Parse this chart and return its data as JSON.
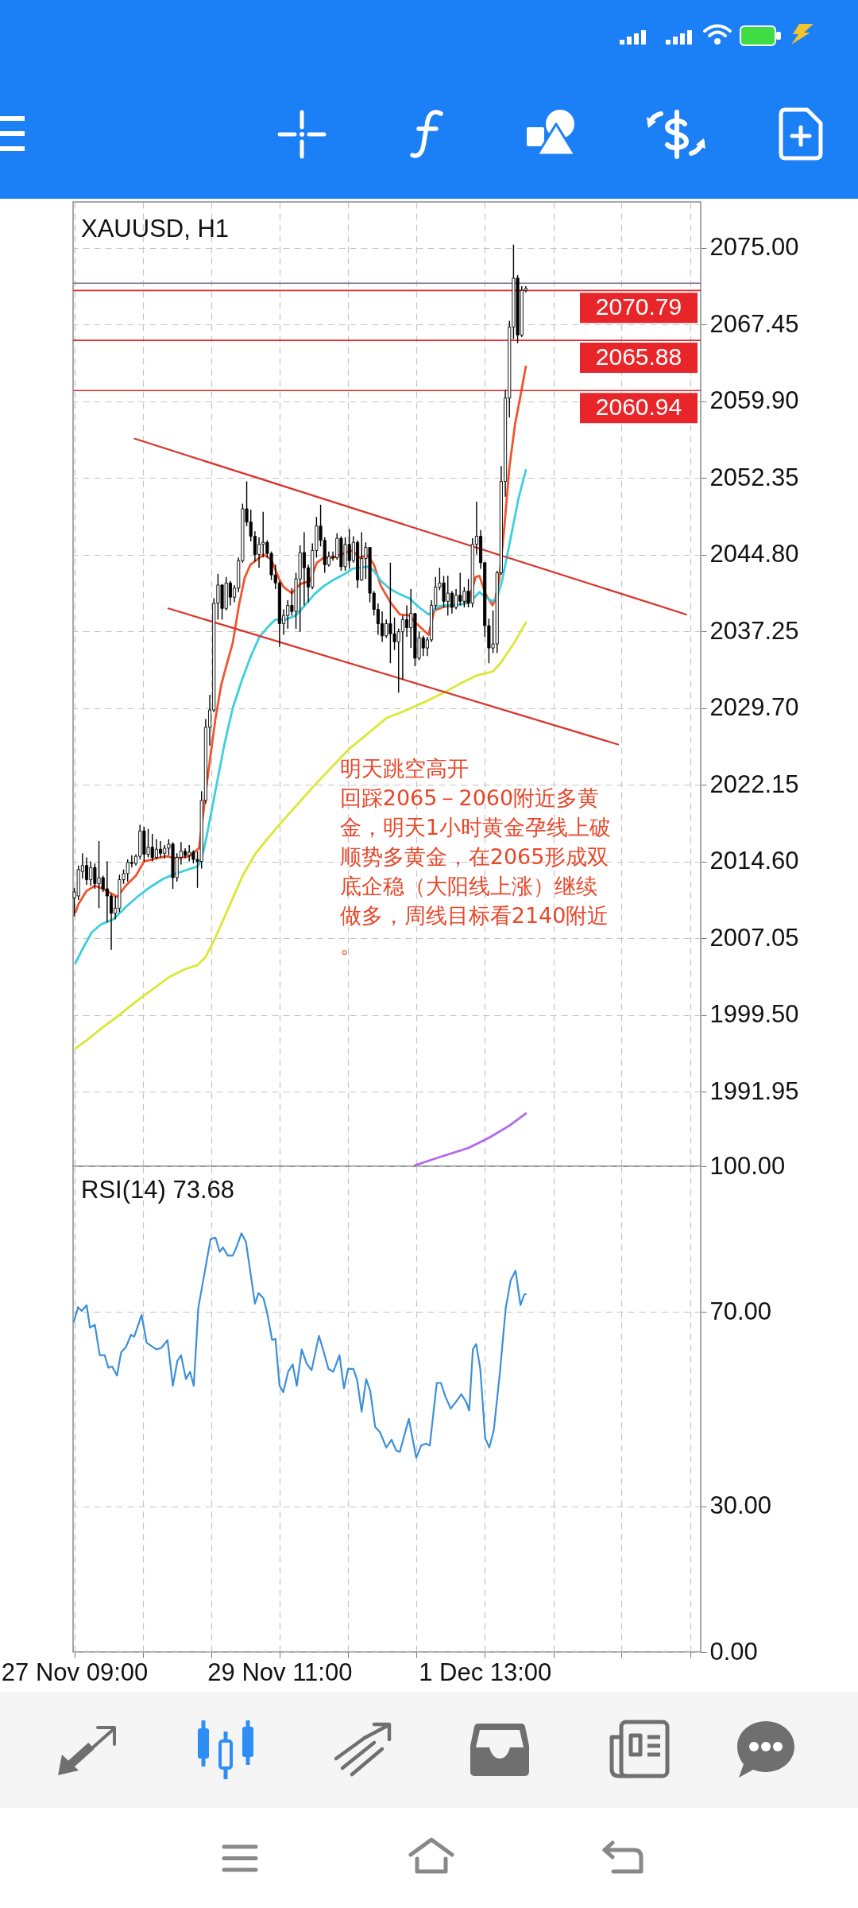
{
  "chart_data": [
    {
      "type": "candlestick",
      "title": "XAUUSD, H1",
      "x": [
        "--11-27T09:00",
        "--11-27T10:00",
        "--11-27T11:00",
        "--11-27T12:00",
        "--11-27T13:00",
        "--11-27T14:00",
        "--11-27T15:00",
        "--11-27T16:00",
        "--11-27T17:00",
        "--11-27T18:00",
        "--11-27T19:00",
        "--11-27T20:00",
        "--11-27T21:00",
        "--11-27T22:00",
        "--11-27T23:00",
        "--11-28T00:00",
        "--11-28T01:00",
        "--11-28T02:00",
        "--11-28T03:00",
        "--11-28T04:00",
        "--11-28T05:00",
        "--11-28T06:00",
        "--11-28T07:00",
        "--11-28T08:00",
        "--11-28T09:00",
        "--11-28T10:00",
        "--11-28T11:00",
        "--11-28T12:00",
        "--11-28T13:00",
        "--11-28T14:00",
        "--11-28T15:00",
        "--11-28T16:00",
        "--11-28T17:00",
        "--11-28T18:00",
        "--11-28T19:00",
        "--11-28T20:00",
        "--11-28T21:00",
        "--11-28T22:00",
        "--11-28T23:00",
        "--11-29T00:00",
        "--11-29T01:00",
        "--11-29T02:00",
        "--11-29T03:00",
        "--11-29T04:00",
        "--11-29T05:00",
        "--11-29T06:00",
        "--11-29T07:00",
        "--11-29T08:00",
        "--11-29T09:00",
        "--11-29T10:00",
        "--11-29T11:00",
        "--11-29T12:00",
        "--11-29T13:00",
        "--11-29T14:00",
        "--11-29T15:00",
        "--11-29T16:00",
        "--11-29T17:00",
        "--11-29T18:00",
        "--11-29T19:00",
        "--11-29T20:00",
        "--11-29T21:00",
        "--11-29T22:00",
        "--11-29T23:00",
        "--11-30T00:00",
        "--11-30T01:00",
        "--11-30T02:00",
        "--11-30T03:00",
        "--11-30T04:00",
        "--11-30T05:00",
        "--11-30T06:00",
        "--11-30T07:00",
        "--11-30T08:00",
        "--11-30T09:00",
        "--11-30T10:00",
        "--11-30T11:00",
        "--11-30T12:00",
        "--11-30T13:00",
        "--11-30T14:00",
        "--11-30T15:00",
        "--11-30T16:00",
        "--11-30T17:00",
        "--11-30T18:00",
        "--11-30T19:00",
        "--11-30T20:00",
        "--11-30T21:00",
        "--11-30T22:00",
        "--11-30T23:00",
        "--12-01T00:00",
        "--12-01T01:00",
        "--12-01T02:00",
        "--12-01T03:00",
        "--12-01T04:00",
        "--12-01T05:00",
        "--12-01T06:00",
        "--12-01T07:00",
        "--12-01T08:00",
        "--12-01T09:00",
        "--12-01T10:00",
        "--12-01T11:00",
        "--12-01T12:00",
        "--12-01T13:00",
        "--12-01T14:00",
        "--12-01T15:00",
        "--12-01T16:00",
        "--12-01T17:00",
        "--12-01T18:00",
        "--12-01T19:00",
        "--12-01T20:00",
        "--12-01T21:00",
        "--12-01T22:00",
        "--12-01T23:00"
      ],
      "ohlc": [
        [
          2011.0,
          2012.0,
          2009.2,
          2011.6
        ],
        [
          2011.2,
          2014.2,
          2010.8,
          2013.8
        ],
        [
          2013.6,
          2015.4,
          2012.9,
          2014.2
        ],
        [
          2014.2,
          2015.0,
          2012.3,
          2012.8
        ],
        [
          2012.8,
          2014.6,
          2012.2,
          2014.0
        ],
        [
          2014.0,
          2014.4,
          2011.9,
          2012.4
        ],
        [
          2012.4,
          2016.6,
          2010.0,
          2013.0
        ],
        [
          2013.0,
          2013.2,
          2011.6,
          2011.9
        ],
        [
          2011.9,
          2014.6,
          2008.6,
          2011.2
        ],
        [
          2011.2,
          2011.4,
          2005.9,
          2009.5
        ],
        [
          2009.5,
          2011.2,
          2008.9,
          2010.0
        ],
        [
          2010.0,
          2013.3,
          2009.6,
          2012.8
        ],
        [
          2012.8,
          2013.8,
          2012.4,
          2013.4
        ],
        [
          2013.4,
          2014.8,
          2012.6,
          2014.5
        ],
        [
          2014.5,
          2015.2,
          2014.0,
          2014.4
        ],
        [
          2014.4,
          2015.3,
          2014.2,
          2015.1
        ],
        [
          2015.1,
          2018.2,
          2014.8,
          2017.6
        ],
        [
          2017.6,
          2018.0,
          2014.6,
          2015.3
        ],
        [
          2015.3,
          2017.8,
          2015.0,
          2016.0
        ],
        [
          2016.0,
          2017.3,
          2014.6,
          2015.0
        ],
        [
          2015.0,
          2016.8,
          2014.8,
          2015.8
        ],
        [
          2015.8,
          2016.6,
          2015.0,
          2015.4
        ],
        [
          2015.4,
          2016.2,
          2014.9,
          2015.9
        ],
        [
          2015.9,
          2016.8,
          2015.2,
          2016.3
        ],
        [
          2016.3,
          2016.5,
          2011.9,
          2013.0
        ],
        [
          2013.0,
          2015.4,
          2012.6,
          2015.0
        ],
        [
          2015.0,
          2016.5,
          2014.3,
          2015.6
        ],
        [
          2015.6,
          2015.9,
          2014.9,
          2015.2
        ],
        [
          2015.2,
          2016.2,
          2014.6,
          2015.5
        ],
        [
          2015.5,
          2015.7,
          2014.4,
          2014.8
        ],
        [
          2014.8,
          2015.6,
          2012.0,
          2014.6
        ],
        [
          2014.6,
          2021.5,
          2013.9,
          2020.6
        ],
        [
          2020.6,
          2028.6,
          2020.3,
          2027.8
        ],
        [
          2027.8,
          2031.0,
          2026.0,
          2029.5
        ],
        [
          2029.5,
          2040.5,
          2029.3,
          2040.0
        ],
        [
          2040.0,
          2042.9,
          2038.4,
          2041.8
        ],
        [
          2041.8,
          2041.9,
          2038.4,
          2039.5
        ],
        [
          2039.5,
          2042.6,
          2039.3,
          2042.0
        ],
        [
          2042.0,
          2042.2,
          2039.8,
          2040.6
        ],
        [
          2040.6,
          2041.8,
          2040.1,
          2041.5
        ],
        [
          2041.5,
          2044.5,
          2041.1,
          2044.2
        ],
        [
          2044.2,
          2049.8,
          2044.0,
          2049.3
        ],
        [
          2049.3,
          2052.0,
          2047.6,
          2048.0
        ],
        [
          2048.0,
          2049.2,
          2046.1,
          2046.6
        ],
        [
          2046.6,
          2047.1,
          2044.1,
          2044.8
        ],
        [
          2044.8,
          2046.5,
          2043.5,
          2045.8
        ],
        [
          2045.8,
          2049.0,
          2044.5,
          2046.0
        ],
        [
          2046.0,
          2046.2,
          2044.5,
          2044.9
        ],
        [
          2044.9,
          2045.1,
          2042.3,
          2042.8
        ],
        [
          2042.8,
          2043.8,
          2041.4,
          2042.0
        ],
        [
          2042.0,
          2042.2,
          2035.7,
          2038.0
        ],
        [
          2038.0,
          2039.4,
          2036.9,
          2038.8
        ],
        [
          2038.8,
          2040.3,
          2037.5,
          2039.8
        ],
        [
          2039.8,
          2041.5,
          2038.8,
          2039.2
        ],
        [
          2039.2,
          2043.0,
          2037.5,
          2042.4
        ],
        [
          2042.4,
          2045.7,
          2037.2,
          2045.0
        ],
        [
          2045.0,
          2047.0,
          2039.8,
          2043.5
        ],
        [
          2043.5,
          2043.8,
          2040.1,
          2041.6
        ],
        [
          2041.6,
          2045.9,
          2041.4,
          2045.2
        ],
        [
          2045.2,
          2048.5,
          2044.5,
          2047.6
        ],
        [
          2047.6,
          2049.7,
          2045.6,
          2046.2
        ],
        [
          2046.2,
          2046.5,
          2043.0,
          2043.8
        ],
        [
          2043.8,
          2045.1,
          2043.6,
          2044.6
        ],
        [
          2044.6,
          2045.1,
          2044.2,
          2044.5
        ],
        [
          2044.5,
          2046.9,
          2044.3,
          2046.4
        ],
        [
          2046.4,
          2046.6,
          2043.2,
          2043.6
        ],
        [
          2043.6,
          2046.5,
          2043.2,
          2045.8
        ],
        [
          2045.8,
          2047.3,
          2043.4,
          2044.2
        ],
        [
          2044.2,
          2046.6,
          2044.0,
          2046.0
        ],
        [
          2046.0,
          2046.2,
          2041.5,
          2042.3
        ],
        [
          2042.3,
          2047.0,
          2042.2,
          2044.4
        ],
        [
          2044.4,
          2046.0,
          2042.4,
          2045.5
        ],
        [
          2045.5,
          2045.5,
          2040.1,
          2041.0
        ],
        [
          2041.0,
          2041.2,
          2038.8,
          2039.4
        ],
        [
          2039.4,
          2040.0,
          2036.9,
          2038.0
        ],
        [
          2038.0,
          2039.2,
          2036.2,
          2036.8
        ],
        [
          2036.8,
          2038.4,
          2036.6,
          2038.0
        ],
        [
          2038.0,
          2044.0,
          2034.1,
          2037.0
        ],
        [
          2037.0,
          2038.6,
          2035.4,
          2036.2
        ],
        [
          2036.2,
          2037.5,
          2031.2,
          2037.2
        ],
        [
          2037.2,
          2038.8,
          2032.5,
          2038.4
        ],
        [
          2038.4,
          2039.8,
          2036.7,
          2037.6
        ],
        [
          2037.6,
          2041.4,
          2035.6,
          2039.0
        ],
        [
          2039.0,
          2039.0,
          2033.8,
          2034.6
        ],
        [
          2034.6,
          2037.2,
          2034.4,
          2036.6
        ],
        [
          2036.6,
          2036.8,
          2034.8,
          2035.6
        ],
        [
          2035.6,
          2036.7,
          2034.8,
          2036.4
        ],
        [
          2036.4,
          2040.3,
          2036.2,
          2039.8
        ],
        [
          2039.8,
          2042.6,
          2039.4,
          2041.6
        ],
        [
          2041.6,
          2043.5,
          2041.3,
          2042.0
        ],
        [
          2042.0,
          2042.7,
          2039.6,
          2040.2
        ],
        [
          2040.2,
          2042.7,
          2038.8,
          2041.0
        ],
        [
          2041.0,
          2041.2,
          2039.0,
          2039.6
        ],
        [
          2039.6,
          2041.4,
          2039.4,
          2040.8
        ],
        [
          2040.8,
          2043.0,
          2039.8,
          2040.2
        ],
        [
          2040.2,
          2041.6,
          2039.6,
          2041.2
        ],
        [
          2041.2,
          2042.4,
          2039.6,
          2040.0
        ],
        [
          2040.0,
          2046.4,
          2039.6,
          2045.8
        ],
        [
          2045.8,
          2050.0,
          2044.8,
          2046.6
        ],
        [
          2046.6,
          2047.2,
          2043.4,
          2044.0
        ],
        [
          2044.0,
          2044.0,
          2036.7,
          2037.8
        ],
        [
          2037.8,
          2038.5,
          2034.1,
          2035.6
        ],
        [
          2035.6,
          2039.3,
          2035.1,
          2036.0
        ],
        [
          2036.0,
          2043.2,
          2035.1,
          2043.0
        ],
        [
          2043.0,
          2053.5,
          2042.8,
          2052.0
        ],
        [
          2052.0,
          2061.0,
          2050.5,
          2060.2
        ],
        [
          2060.2,
          2067.8,
          2058.3,
          2067.2
        ],
        [
          2067.2,
          2075.3,
          2066.0,
          2072.0
        ],
        [
          2072.0,
          2072.3,
          2065.6,
          2066.4
        ],
        [
          2066.4,
          2071.2,
          2066.2,
          2070.8
        ],
        [
          2070.8,
          2071.2,
          2070.6,
          2071.0
        ]
      ],
      "series": [
        {
          "type": "line",
          "color": "#f2542d",
          "x": [
            "--11-27T09:18",
            "--11-27T10:00",
            "--11-27T12:00",
            "--11-27T14:00",
            "--11-27T16:00",
            "--11-27T19:30",
            "--11-27T21:30",
            "--11-28T00:00",
            "--11-28T02:00",
            "--11-28T05:00",
            "--11-28T07:30",
            "--11-28T10:00",
            "--11-28T13:00",
            "--11-28T15:24",
            "--11-28T16:30",
            "--11-28T17:12",
            "--11-28T18:18",
            "--11-28T19:24",
            "--11-28T20:48",
            "--11-28T22:12",
            "--11-28T23:36",
            "--11-29T01:06",
            "--11-29T02:30",
            "--11-29T03:54",
            "--11-29T07:06",
            "--11-29T09:00",
            "--11-29T10:00",
            "--11-29T11:00",
            "--11-29T12:00",
            "--11-29T13:00",
            "--11-29T14:00",
            "--11-29T16:00",
            "--11-29T18:24",
            "--11-29T20:06",
            "--11-29T21:48",
            "--11-30T00:06",
            "--11-30T02:30",
            "--11-30T04:48",
            "--11-30T06:30",
            "--11-30T08:30",
            "--11-30T10:00",
            "--11-30T11:42",
            "--11-30T14:00",
            "--11-30T16:18",
            "--11-30T18:36",
            "--11-30T20:24",
            "--11-30T23:18",
            "--12-01T00:42",
            "--12-01T02:42",
            "--12-01T05:06",
            "--12-01T07:24",
            "--12-01T09:06",
            "--12-01T10:48",
            "--12-01T11:42",
            "--12-01T13:12",
            "--12-01T14:54",
            "--12-01T15:30",
            "--12-01T16:30",
            "--12-01T17:48",
            "--12-01T19:00",
            "--12-01T20:24",
            "--12-01T21:30",
            "--12-01T23:00"
          ],
          "values": [
            2009.6,
            2010.4,
            2011.7,
            2012.2,
            2011.9,
            2011.1,
            2012.2,
            2013.2,
            2014.6,
            2014.9,
            2015.1,
            2014.9,
            2015.1,
            2015.9,
            2019.6,
            2022.0,
            2025.4,
            2028.7,
            2032.0,
            2034.1,
            2036.1,
            2039.8,
            2042.5,
            2043.8,
            2044.8,
            2044.3,
            2043.3,
            2042.3,
            2041.6,
            2041.3,
            2041.0,
            2041.9,
            2042.2,
            2044.0,
            2044.5,
            2044.5,
            2044.9,
            2045.2,
            2044.5,
            2044.7,
            2043.8,
            2041.7,
            2040.1,
            2038.9,
            2038.8,
            2038.0,
            2036.9,
            2039.3,
            2039.6,
            2039.8,
            2039.9,
            2040.3,
            2042.6,
            2042.7,
            2040.9,
            2039.8,
            2040.3,
            2042.3,
            2047.7,
            2053.4,
            2057.7,
            2060.0,
            2063.3
          ]
        },
        {
          "type": "line",
          "color": "#3ad0dc",
          "x": [
            "--11-27T09:18",
            "--11-27T10:54",
            "--11-27T13:12",
            "--11-27T15:30",
            "--11-27T18:30",
            "--11-27T21:30",
            "--11-28T00:36",
            "--11-28T03:36",
            "--11-28T06:42",
            "--11-28T09:42",
            "--11-28T12:42",
            "--11-28T15:00",
            "--11-28T16:00",
            "--11-28T17:12",
            "--11-28T19:24",
            "--11-28T21:30",
            "--11-28T23:36",
            "--11-29T01:48",
            "--11-29T03:54",
            "--11-29T06:06",
            "--11-29T08:12",
            "--11-29T10:00",
            "--11-29T12:30",
            "--11-29T14:54",
            "--11-29T17:12",
            "--11-29T19:30",
            "--11-29T21:48",
            "--11-30T00:06",
            "--11-30T02:30",
            "--11-30T04:48",
            "--11-30T06:30",
            "--11-30T08:30",
            "--11-30T10:00",
            "--11-30T11:42",
            "--11-30T14:00",
            "--11-30T16:18",
            "--11-30T18:36",
            "--11-30T21:00",
            "--11-30T23:18",
            "--12-01T01:36",
            "--12-01T03:54",
            "--12-01T06:12",
            "--12-01T08:30",
            "--12-01T10:18",
            "--12-01T11:42",
            "--12-01T13:12",
            "--12-01T14:54",
            "--12-01T16:00",
            "--12-01T17:12",
            "--12-01T18:54",
            "--12-01T21:12",
            "--12-01T23:00"
          ],
          "values": [
            2004.6,
            2005.9,
            2007.6,
            2008.4,
            2008.9,
            2010.1,
            2011.2,
            2012.1,
            2012.9,
            2013.4,
            2013.8,
            2014.1,
            2014.8,
            2017.0,
            2021.6,
            2026.0,
            2029.7,
            2032.4,
            2034.7,
            2036.7,
            2037.7,
            2038.4,
            2038.4,
            2038.8,
            2039.8,
            2040.9,
            2041.7,
            2042.3,
            2042.8,
            2043.4,
            2043.5,
            2043.6,
            2043.2,
            2042.2,
            2041.4,
            2040.9,
            2040.5,
            2039.6,
            2038.9,
            2039.7,
            2039.8,
            2039.8,
            2040.0,
            2040.5,
            2041.1,
            2040.6,
            2040.2,
            2040.6,
            2042.2,
            2045.6,
            2050.3,
            2053.1
          ]
        },
        {
          "type": "line",
          "color": "#d9e830",
          "x": [
            "--11-27T09:18",
            "--11-27T12:00",
            "--11-27T16:00",
            "--11-27T20:00",
            "--11-28T00:00",
            "--11-28T04:00",
            "--11-28T08:00",
            "--11-28T12:00",
            "--11-28T15:00",
            "--11-28T17:00",
            "--11-28T19:00",
            "--11-28T22:00",
            "--11-29T02:00",
            "--11-29T05:00",
            "--11-29T08:00",
            "--11-29T12:00",
            "--11-29T16:00",
            "--11-29T20:00",
            "--11-30T00:00",
            "--11-30T04:00",
            "--11-30T08:00",
            "--11-30T13:00",
            "--11-30T18:00",
            "--11-30T23:00",
            "--12-01T03:00",
            "--12-01T07:00",
            "--12-01T11:00",
            "--12-01T15:00",
            "--12-01T17:00",
            "--12-01T20:00",
            "--12-01T23:00"
          ],
          "values": [
            1996.2,
            1997.0,
            1998.3,
            1999.5,
            2000.8,
            2002.0,
            2003.2,
            2004.0,
            2004.4,
            2005.2,
            2006.8,
            2009.5,
            2013.2,
            2015.3,
            2016.8,
            2018.7,
            2020.5,
            2022.3,
            2024.0,
            2025.7,
            2027.0,
            2028.7,
            2029.5,
            2030.4,
            2031.2,
            2032.1,
            2032.9,
            2033.3,
            2034.2,
            2036.0,
            2038.1
          ]
        },
        {
          "type": "line",
          "color": "#b266f0",
          "x": [
            "--11-30T20:00",
            "--12-01T02:00",
            "--12-01T09:00",
            "--12-01T14:00",
            "--12-01T19:00",
            "--12-01T23:00"
          ],
          "values": [
            1984.7,
            1985.5,
            1986.4,
            1987.4,
            1988.6,
            1989.8
          ]
        },
        {
          "type": "line",
          "color": "#d9342b",
          "x": [
            "--11-27T23:42",
            "--12-03T14:06"
          ],
          "values": [
            2056.2,
            2038.9
          ]
        },
        {
          "type": "line",
          "color": "#d9342b",
          "x": [
            "--11-28T07:54",
            "--12-02T21:30"
          ],
          "values": [
            2039.5,
            2026.1
          ]
        }
      ],
      "xlim": [
        "--11-27T08:42",
        "--12-03T17:36"
      ],
      "xticks": [
        {
          "value": "--11-27T09:00",
          "label": null
        },
        {
          "value": "--11-28T01:42",
          "label": null
        },
        {
          "value": "--11-28T18:18",
          "label": null
        },
        {
          "value": "--11-29T11:00",
          "label": null
        },
        {
          "value": "--11-30T03:42",
          "label": null
        },
        {
          "value": "--11-30T20:18",
          "label": null
        },
        {
          "value": "--12-01T13:00",
          "label": null
        },
        {
          "value": "--12-02T05:42",
          "label": null
        },
        {
          "value": "--12-02T22:18",
          "label": null
        },
        {
          "value": "--12-03T15:00",
          "label": null
        }
      ],
      "ylim": [
        1984.6,
        2079.5
      ],
      "yticks": [
        {
          "value": 2075,
          "label": "2075.00"
        },
        2067.45,
        {
          "value": 2059.9,
          "label": "2059.90"
        },
        2052.35,
        {
          "value": 2044.8,
          "label": "2044.80"
        },
        2037.25,
        {
          "value": 2029.7,
          "label": "2029.70"
        },
        2022.15,
        {
          "value": 2014.6,
          "label": "2014.60"
        },
        2007.05,
        {
          "value": 1999.5,
          "label": "1999.50"
        },
        1991.95
      ],
      "grid": true,
      "tick_labels": "y",
      "ref_lines": [
        {
          "axis": "y",
          "value": 2071.5,
          "label": null,
          "color": "#7d6b95"
        },
        {
          "axis": "y",
          "value": 2070.79,
          "label": "2070.79",
          "color": "#e8262a"
        },
        {
          "axis": "y",
          "value": 2065.88,
          "label": "2065.88",
          "color": "#e8262a"
        },
        {
          "axis": "y",
          "value": 2060.94,
          "label": "2060.94",
          "color": "#e8262a"
        }
      ],
      "annotations": [
        "明天跳空高开",
        "回踩2065－2060附近多黄金，明天1小时黄金孕线上破顺势多黄金，在2065形成双底企稳（大阳线上涨）继续做多，周线目标看2140附近。"
      ]
    },
    {
      "type": "line",
      "title": "RSI(14) 73.68",
      "series": [
        {
          "color": "#3d8fd9",
          "x": [
            "--11-27T08:54",
            "--11-27T09:54",
            "--11-27T10:48",
            "--11-27T12:00",
            "--11-27T12:48",
            "--11-27T14:00",
            "--11-27T15:12",
            "--11-27T16:24",
            "--11-27T17:18",
            "--11-27T18:12",
            "--11-27T19:24",
            "--11-27T20:24",
            "--11-27T21:36",
            "--11-27T22:48",
            "--11-27T23:36",
            "--11-28T01:24",
            "--11-28T02:36",
            "--11-28T03:48",
            "--11-28T05:00",
            "--11-28T06:12",
            "--11-28T07:42",
            "--11-28T09:00",
            "--11-28T10:06",
            "--11-28T11:00",
            "--11-28T12:12",
            "--11-28T13:12",
            "--11-28T14:06",
            "--11-28T15:12",
            "--11-28T16:24",
            "--11-28T18:12",
            "--11-28T19:24",
            "--11-28T20:24",
            "--11-28T21:12",
            "--11-28T22:24",
            "--11-28T23:36",
            "--11-29T00:30",
            "--11-29T01:42",
            "--11-29T02:48",
            "--11-29T04:00",
            "--11-29T05:00",
            "--11-29T05:54",
            "--11-29T07:06",
            "--11-29T08:00",
            "--11-29T09:12",
            "--11-29T10:00",
            "--11-29T11:00",
            "--11-29T11:54",
            "--11-29T13:06",
            "--11-29T14:12",
            "--11-29T15:12",
            "--11-29T16:24",
            "--11-29T17:36",
            "--11-29T18:48",
            "--11-29T20:36",
            "--11-29T21:48",
            "--11-29T22:54",
            "--11-30T00:06",
            "--11-30T01:36",
            "--11-30T02:42",
            "--11-30T03:42",
            "--11-30T05:00",
            "--11-30T05:54",
            "--11-30T07:00",
            "--11-30T08:06",
            "--11-30T09:06",
            "--11-30T10:18",
            "--11-30T11:30",
            "--11-30T13:00",
            "--11-30T14:18",
            "--11-30T15:24",
            "--11-30T16:18",
            "--11-30T18:30",
            "--11-30T20:18",
            "--11-30T21:30",
            "--11-30T22:42",
            "--11-30T23:36",
            "--12-01T01:18",
            "--12-01T02:18",
            "--12-01T03:24",
            "--12-01T04:42",
            "--12-01T05:54",
            "--12-01T07:18",
            "--12-01T08:30",
            "--12-01T09:12",
            "--12-01T10:06",
            "--12-01T10:54",
            "--12-01T11:54",
            "--12-01T13:06",
            "--12-01T14:06",
            "--12-01T15:12",
            "--12-01T16:42",
            "--12-01T18:06",
            "--12-01T19:18",
            "--12-01T20:30",
            "--12-01T21:42",
            "--12-01T22:36",
            "--12-01T23:00"
          ],
          "values": [
            68.0,
            71.0,
            70.2,
            71.4,
            66.8,
            67.4,
            61.1,
            61.1,
            58.5,
            58.8,
            56.9,
            61.7,
            62.8,
            65.3,
            64.9,
            69.4,
            63.7,
            63.0,
            62.3,
            62.6,
            64.2,
            54.8,
            59.9,
            61.1,
            56.2,
            57.7,
            54.8,
            70.8,
            76.5,
            85.0,
            85.3,
            82.4,
            83.3,
            81.6,
            81.6,
            83.3,
            86.2,
            84.5,
            77.6,
            71.7,
            73.9,
            72.8,
            69.7,
            64.2,
            64.5,
            54.8,
            53.5,
            57.7,
            59.2,
            54.8,
            62.3,
            59.4,
            58.0,
            65.1,
            61.7,
            58.3,
            57.7,
            61.1,
            54.3,
            58.3,
            58.3,
            56.0,
            49.5,
            56.2,
            53.7,
            46.3,
            45.2,
            42.1,
            43.7,
            41.5,
            41.2,
            48.0,
            40.0,
            42.5,
            42.9,
            42.5,
            55.4,
            55.4,
            52.6,
            50.1,
            51.4,
            53.1,
            51.4,
            49.7,
            62.3,
            63.4,
            58.3,
            44.0,
            42.1,
            45.7,
            57.7,
            70.8,
            76.5,
            78.5,
            71.4,
            73.6,
            73.68
          ]
        }
      ],
      "xlim": [
        "--11-27T08:42",
        "--12-03T17:36"
      ],
      "xticks": [
        {
          "value": "--11-27T09:00",
          "label": "27 Nov 09:00"
        },
        {
          "value": "--11-28T01:42",
          "label": null
        },
        {
          "value": "--11-28T18:18",
          "label": null
        },
        {
          "value": "--11-29T11:00",
          "label": "29 Nov 11:00"
        },
        {
          "value": "--11-30T03:42",
          "label": null
        },
        {
          "value": "--11-30T20:18",
          "label": null
        },
        {
          "value": "--12-01T13:00",
          "label": "1 Dec 13:00"
        },
        {
          "value": "--12-02T05:42",
          "label": null
        },
        {
          "value": "--12-02T22:18",
          "label": null
        },
        {
          "value": "--12-03T15:00",
          "label": null
        }
      ],
      "ylim": [
        0,
        100
      ],
      "yticks": [
        {
          "value": 100,
          "label": "100.00"
        },
        {
          "value": 70,
          "label": "70.00"
        },
        {
          "value": 30,
          "label": "30.00"
        },
        {
          "value": 0,
          "label": "0.00"
        }
      ],
      "grid": true
    }
  ]
}
